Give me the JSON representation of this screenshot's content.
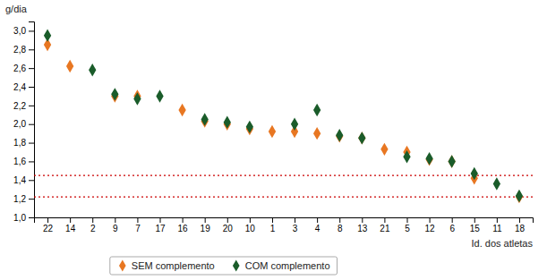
{
  "chart_data": {
    "type": "scatter",
    "categories": [
      "22",
      "14",
      "2",
      "9",
      "7",
      "17",
      "16",
      "19",
      "20",
      "10",
      "1",
      "3",
      "4",
      "8",
      "13",
      "21",
      "5",
      "12",
      "6",
      "15",
      "11",
      "18"
    ],
    "series": [
      {
        "name": "SEM complemento",
        "color": "#e87722",
        "marker": "diamond",
        "values": [
          2.85,
          2.62,
          null,
          2.3,
          2.3,
          null,
          2.15,
          2.03,
          2.0,
          1.95,
          1.92,
          1.92,
          1.9,
          1.87,
          1.85,
          1.73,
          1.7,
          1.62,
          1.6,
          1.42,
          null,
          1.22
        ]
      },
      {
        "name": "COM complemento",
        "color": "#1a5c2a",
        "marker": "diamond",
        "values": [
          2.95,
          null,
          2.58,
          2.32,
          2.27,
          2.3,
          null,
          2.05,
          2.02,
          1.97,
          null,
          2.0,
          2.15,
          1.88,
          1.85,
          null,
          1.65,
          1.63,
          1.6,
          1.47,
          1.36,
          1.23
        ]
      }
    ],
    "hlines": [
      {
        "value": 1.45,
        "color": "#cc0000",
        "line_style": "dotted"
      },
      {
        "value": 1.22,
        "color": "#cc0000",
        "line_style": "dotted"
      }
    ],
    "ylabel": "g/dia",
    "xlabel": "Id. dos atletas",
    "ylim": [
      1.0,
      3.1
    ],
    "yticks": [
      {
        "value": 1.0,
        "label": "1,0"
      },
      {
        "value": 1.2,
        "label": "1,2"
      },
      {
        "value": 1.4,
        "label": "1,4"
      },
      {
        "value": 1.6,
        "label": "1,6"
      },
      {
        "value": 1.8,
        "label": "1,8"
      },
      {
        "value": 2.0,
        "label": "2,0"
      },
      {
        "value": 2.2,
        "label": "2,2"
      },
      {
        "value": 2.4,
        "label": "2,4"
      },
      {
        "value": 2.6,
        "label": "2,6"
      },
      {
        "value": 2.8,
        "label": "2,8"
      },
      {
        "value": 3.0,
        "label": "3,0"
      }
    ],
    "grid": false,
    "legend": "bottom"
  }
}
